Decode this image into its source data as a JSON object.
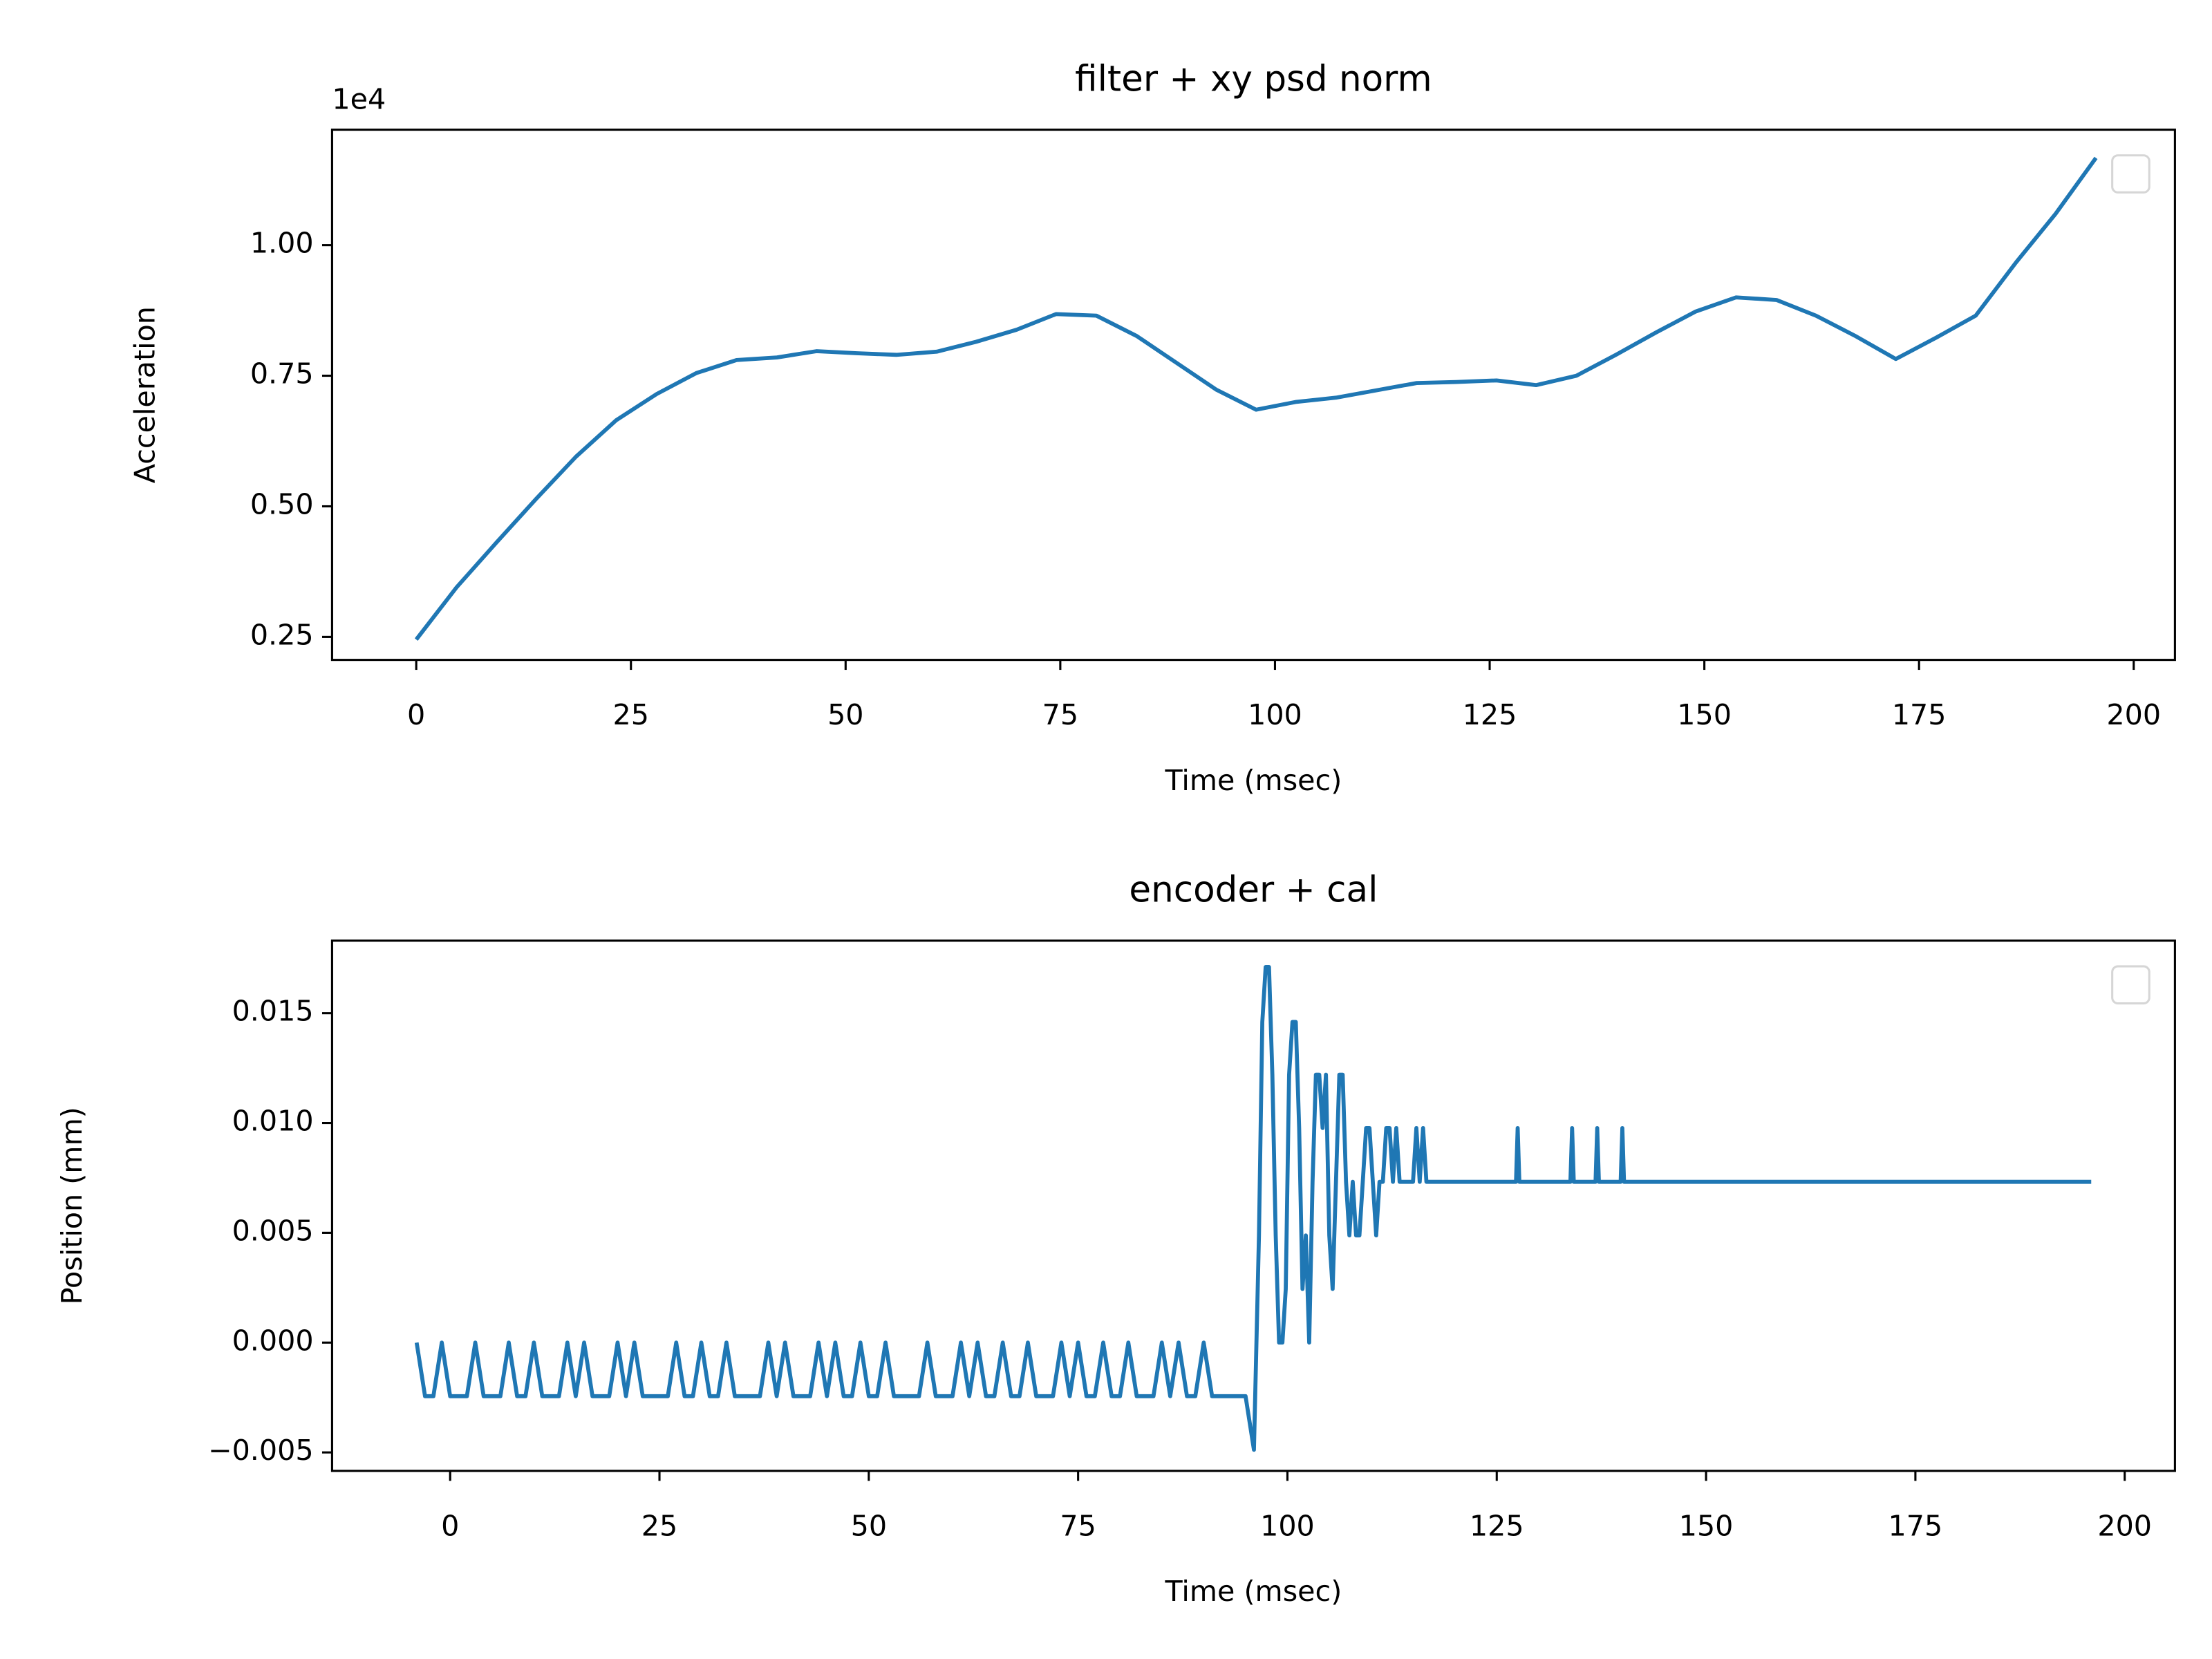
{
  "chart_data": [
    {
      "type": "line",
      "title": "filter + xy psd norm",
      "xlabel": "Time (msec)",
      "ylabel": "Acceleration",
      "y_offset_label": "1e4",
      "color": "#1f77b4",
      "legend_loc": "upper right",
      "x": [
        0,
        4.7,
        9.3,
        14,
        18.6,
        23.3,
        28,
        32.6,
        37.3,
        42,
        46.6,
        51.3,
        55.9,
        60.6,
        65.2,
        69.9,
        74.5,
        79.2,
        83.9,
        88.5,
        93.2,
        97.8,
        102.5,
        107.1,
        111.8,
        116.5,
        121.1,
        125.8,
        130.4,
        135.1,
        139.7,
        144.4,
        149,
        153.7,
        158.4,
        163,
        167.7,
        172.3,
        177,
        181.6,
        186.3,
        190.9,
        195.6
      ],
      "values": [
        0.245,
        0.345,
        0.43,
        0.515,
        0.595,
        0.665,
        0.715,
        0.755,
        0.78,
        0.785,
        0.797,
        0.793,
        0.79,
        0.796,
        0.815,
        0.838,
        0.868,
        0.865,
        0.826,
        0.775,
        0.723,
        0.685,
        0.7,
        0.708,
        0.722,
        0.736,
        0.738,
        0.741,
        0.732,
        0.75,
        0.79,
        0.833,
        0.873,
        0.9,
        0.895,
        0.865,
        0.825,
        0.782,
        0.823,
        0.865,
        0.967,
        1.06,
        1.167
      ],
      "xlim": [
        -9.8,
        204.8
      ],
      "ylim": [
        0.206,
        1.221
      ],
      "xticks": [
        0,
        25,
        50,
        75,
        100,
        125,
        150,
        175,
        200
      ],
      "yticks": [
        0.25,
        {
          "value": 0.5,
          "label": "0.50"
        },
        0.75,
        {
          "value": 1,
          "label": "1.00"
        }
      ]
    },
    {
      "type": "line",
      "title": "encoder + cal",
      "xlabel": "Time (msec)",
      "ylabel": "Position (mm)",
      "color": "#1f77b4",
      "legend_loc": "upper right",
      "x": [
        -4,
        -3,
        -2,
        -1,
        0,
        1,
        2,
        3,
        4,
        5,
        6,
        7,
        8,
        9,
        10,
        11,
        12,
        13,
        14,
        15,
        16,
        17,
        18,
        19,
        20,
        21,
        22,
        23,
        24,
        25,
        26,
        27,
        28,
        29,
        30,
        31,
        32,
        33,
        34,
        35,
        36,
        37,
        38,
        39,
        40,
        41,
        42,
        43,
        44,
        45,
        46,
        47,
        48,
        49,
        50,
        51,
        52,
        53,
        54,
        55,
        56,
        57,
        58,
        59,
        60,
        61,
        62,
        63,
        64,
        65,
        66,
        67,
        68,
        69,
        70,
        71,
        72,
        73,
        74,
        75,
        76,
        77,
        78,
        79,
        80,
        81,
        82,
        83,
        84,
        85,
        86,
        87,
        88,
        89,
        90,
        91,
        92,
        93,
        94,
        95,
        96,
        96.6,
        97,
        97.4,
        97.8,
        98.2,
        98.6,
        99,
        99.4,
        99.8,
        100.2,
        100.6,
        101,
        101.4,
        101.8,
        102.2,
        102.6,
        103,
        103.4,
        103.8,
        104.2,
        104.6,
        105,
        105.4,
        105.8,
        106.2,
        106.6,
        107,
        107.4,
        107.8,
        108.2,
        108.6,
        109,
        109.4,
        109.8,
        110.2,
        110.6,
        111,
        111.4,
        111.8,
        112.2,
        112.6,
        113,
        113.4,
        115,
        115.4,
        115.8,
        116.2,
        116.6,
        127.3,
        127.5,
        127.7,
        133.8,
        134,
        134.2,
        136.8,
        137,
        137.2,
        139.8,
        140,
        140.2,
        196
      ],
      "values": [
        0,
        -0.00244,
        -0.00244,
        0,
        -0.00244,
        -0.00244,
        -0.00244,
        0,
        -0.00244,
        -0.00244,
        -0.00244,
        0,
        -0.00244,
        -0.00244,
        0,
        -0.00244,
        -0.00244,
        -0.00244,
        0,
        -0.00244,
        0,
        -0.00244,
        -0.00244,
        -0.00244,
        0,
        -0.00244,
        0,
        -0.00244,
        -0.00244,
        -0.00244,
        -0.00244,
        0,
        -0.00244,
        -0.00244,
        0,
        -0.00244,
        -0.00244,
        0,
        -0.00244,
        -0.00244,
        -0.00244,
        -0.00244,
        0,
        -0.00244,
        0,
        -0.00244,
        -0.00244,
        -0.00244,
        0,
        -0.00244,
        0,
        -0.00244,
        -0.00244,
        0,
        -0.00244,
        -0.00244,
        0,
        -0.00244,
        -0.00244,
        -0.00244,
        -0.00244,
        0,
        -0.00244,
        -0.00244,
        -0.00244,
        0,
        -0.00244,
        0,
        -0.00244,
        -0.00244,
        0,
        -0.00244,
        -0.00244,
        0,
        -0.00244,
        -0.00244,
        -0.00244,
        0,
        -0.00244,
        0,
        -0.00244,
        -0.00244,
        0,
        -0.00244,
        -0.00244,
        0,
        -0.00244,
        -0.00244,
        -0.00244,
        0,
        -0.00244,
        0,
        -0.00244,
        -0.00244,
        0,
        -0.00244,
        -0.00244,
        -0.00244,
        -0.00244,
        -0.00244,
        -0.00488,
        0.00488,
        0.0146,
        0.0171,
        0.0171,
        0.0122,
        0.00488,
        0,
        0,
        0.00244,
        0.0122,
        0.0146,
        0.0146,
        0.00977,
        0.00244,
        0.00488,
        0,
        0.00732,
        0.0122,
        0.0122,
        0.00977,
        0.0122,
        0.00488,
        0.00244,
        0.00732,
        0.0122,
        0.0122,
        0.00732,
        0.00488,
        0.00732,
        0.00488,
        0.00488,
        0.00732,
        0.00977,
        0.00977,
        0.00732,
        0.00488,
        0.00732,
        0.00732,
        0.00977,
        0.00977,
        0.00732,
        0.00977,
        0.00732,
        0.00732,
        0.00977,
        0.00732,
        0.00977,
        0.00732,
        0.00732,
        0.00977,
        0.00732,
        0.00732,
        0.00977,
        0.00732,
        0.00732,
        0.00977,
        0.00732,
        0.00732,
        0.00977,
        0.00732,
        0.00732
      ],
      "xlim": [
        -14.1,
        206
      ],
      "ylim": [
        -0.00584,
        0.0183
      ],
      "xticks": [
        0,
        25,
        50,
        75,
        100,
        125,
        150,
        175,
        200
      ],
      "yticks": [
        {
          "value": -0.005,
          "label": "−0.005"
        },
        {
          "value": 0,
          "label": "0.000"
        },
        0.005,
        {
          "value": 0.01,
          "label": "0.010"
        },
        0.015
      ]
    }
  ]
}
